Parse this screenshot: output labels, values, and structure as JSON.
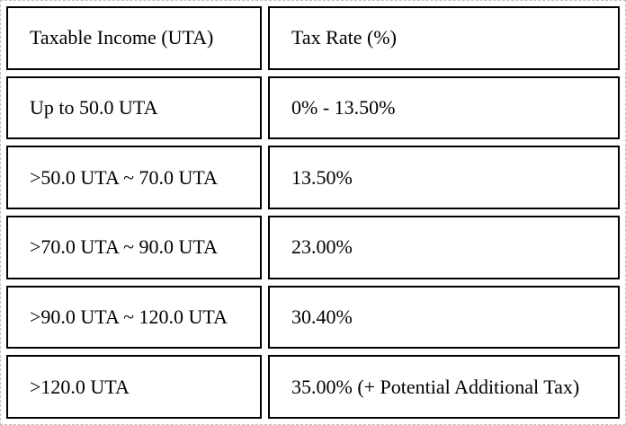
{
  "table": {
    "header": {
      "income": "Taxable Income (UTA)",
      "rate": "Tax Rate (%)"
    },
    "rows": [
      {
        "income": "Up to 50.0 UTA",
        "rate": "0% - 13.50%"
      },
      {
        "income": ">50.0 UTA ~ 70.0 UTA",
        "rate": "13.50%"
      },
      {
        "income": ">70.0 UTA ~ 90.0 UTA",
        "rate": "23.00%"
      },
      {
        "income": ">90.0 UTA ~ 120.0 UTA",
        "rate": "30.40%"
      },
      {
        "income": ">120.0 UTA",
        "rate": "35.00% (+ Potential Additional Tax)"
      }
    ]
  },
  "colors": {
    "cell_border": "#000000",
    "outer_frame_dashed": "#c0c0c0",
    "background": "#ffffff",
    "text": "#000000"
  }
}
